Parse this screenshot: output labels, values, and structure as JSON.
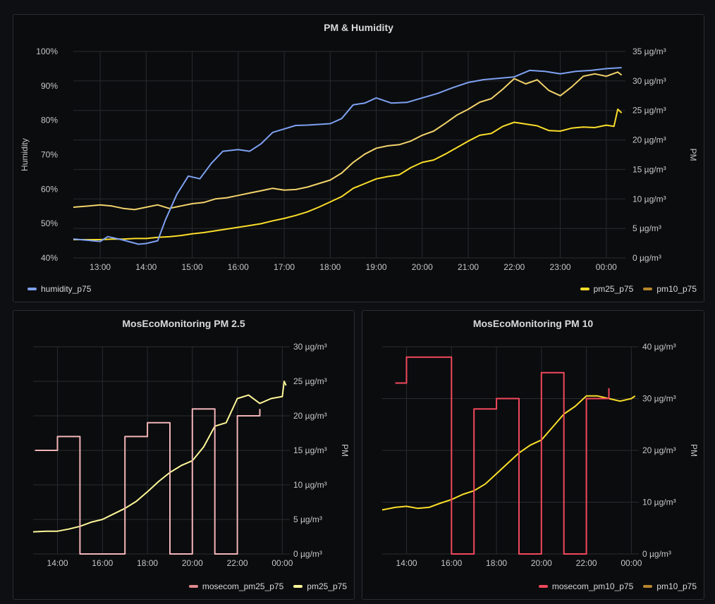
{
  "panels": [
    {
      "title": "PM & Humidity",
      "chart_data": {
        "type": "line",
        "x_ticks": [
          "13:00",
          "14:00",
          "15:00",
          "16:00",
          "17:00",
          "18:00",
          "19:00",
          "20:00",
          "21:00",
          "22:00",
          "23:00",
          "00:00"
        ],
        "xlim": [
          "12:25",
          "00:25"
        ],
        "left_axis": {
          "label": "Humidity",
          "ylim": [
            40,
            100
          ],
          "ticks": [
            "40%",
            "50%",
            "60%",
            "70%",
            "80%",
            "90%",
            "100%"
          ]
        },
        "right_axis": {
          "label": "PM",
          "ylim": [
            0,
            35
          ],
          "ticks": [
            "0 µg/m³",
            "5 µg/m³",
            "10 µg/m³",
            "15 µg/m³",
            "20 µg/m³",
            "25 µg/m³",
            "30 µg/m³",
            "35 µg/m³"
          ]
        },
        "grid": true,
        "series": [
          {
            "name": "humidity_p75",
            "axis": "left",
            "color": "#7ea1f2",
            "x": [
              "12:25",
              "13:00",
              "13:10",
              "13:30",
              "13:50",
              "14:00",
              "14:15",
              "14:25",
              "14:40",
              "14:55",
              "15:10",
              "15:25",
              "15:40",
              "16:00",
              "16:15",
              "16:30",
              "16:45",
              "17:00",
              "17:15",
              "17:30",
              "18:00",
              "18:15",
              "18:30",
              "18:45",
              "19:00",
              "19:20",
              "19:40",
              "20:00",
              "20:20",
              "20:40",
              "21:00",
              "21:20",
              "21:40",
              "22:00",
              "22:20",
              "22:40",
              "23:00",
              "23:20",
              "23:40",
              "00:00",
              "00:20"
            ],
            "values": [
              45.5,
              44.8,
              46.2,
              45.2,
              44.0,
              44.2,
              45.0,
              51.0,
              58.5,
              63.8,
              63.0,
              67.5,
              71.0,
              71.5,
              71.0,
              73.2,
              76.5,
              77.5,
              78.5,
              78.6,
              79.0,
              80.5,
              84.5,
              85.0,
              86.5,
              85.0,
              85.2,
              86.5,
              87.8,
              89.5,
              91.0,
              91.8,
              92.2,
              92.6,
              94.5,
              94.2,
              93.5,
              94.2,
              94.5,
              95.0,
              95.3
            ]
          },
          {
            "name": "pm25_p75",
            "axis": "right",
            "color": "#fade2a",
            "x": [
              "12:25",
              "12:40",
              "13:00",
              "13:15",
              "13:30",
              "13:45",
              "14:00",
              "14:15",
              "14:30",
              "14:45",
              "15:00",
              "15:15",
              "15:30",
              "15:45",
              "16:00",
              "16:15",
              "16:30",
              "16:45",
              "17:00",
              "17:15",
              "17:30",
              "17:45",
              "18:00",
              "18:15",
              "18:30",
              "18:45",
              "19:00",
              "19:15",
              "19:30",
              "19:45",
              "20:00",
              "20:15",
              "20:30",
              "20:45",
              "21:00",
              "21:15",
              "21:30",
              "21:45",
              "22:00",
              "22:15",
              "22:30",
              "22:45",
              "23:00",
              "23:15",
              "23:30",
              "23:45",
              "00:00",
              "00:10",
              "00:15",
              "00:20"
            ],
            "values": [
              3.1,
              3.1,
              3.1,
              3.2,
              3.2,
              3.3,
              3.3,
              3.5,
              3.6,
              3.8,
              4.1,
              4.3,
              4.6,
              4.9,
              5.2,
              5.5,
              5.8,
              6.3,
              6.7,
              7.2,
              7.8,
              8.6,
              9.5,
              10.4,
              11.8,
              12.6,
              13.4,
              13.8,
              14.1,
              15.3,
              16.2,
              16.6,
              17.6,
              18.7,
              19.8,
              20.8,
              21.1,
              22.3,
              23.0,
              22.7,
              22.4,
              21.6,
              21.5,
              22.0,
              22.2,
              22.1,
              22.5,
              22.3,
              25.2,
              24.6
            ]
          },
          {
            "name": "pm10_p75",
            "axis": "right",
            "color": "#f2d36b",
            "x": [
              "12:25",
              "12:45",
              "13:00",
              "13:15",
              "13:30",
              "13:45",
              "14:00",
              "14:15",
              "14:30",
              "14:45",
              "15:00",
              "15:15",
              "15:30",
              "15:45",
              "16:00",
              "16:15",
              "16:30",
              "16:45",
              "17:00",
              "17:15",
              "17:30",
              "17:45",
              "18:00",
              "18:15",
              "18:30",
              "18:45",
              "19:00",
              "19:15",
              "19:30",
              "19:45",
              "20:00",
              "20:15",
              "20:30",
              "20:45",
              "21:00",
              "21:15",
              "21:30",
              "21:45",
              "22:00",
              "22:15",
              "22:30",
              "22:45",
              "23:00",
              "23:15",
              "23:30",
              "23:45",
              "00:00",
              "00:15",
              "00:20"
            ],
            "values": [
              8.6,
              8.8,
              9.0,
              8.8,
              8.4,
              8.2,
              8.6,
              9.0,
              8.4,
              8.8,
              9.2,
              9.4,
              10.0,
              10.2,
              10.6,
              11.0,
              11.4,
              11.8,
              11.5,
              11.6,
              12.0,
              12.6,
              13.2,
              14.4,
              16.2,
              17.6,
              18.6,
              19.0,
              19.2,
              19.8,
              20.8,
              21.5,
              22.8,
              24.2,
              25.2,
              26.4,
              27.0,
              28.6,
              30.4,
              29.5,
              30.2,
              28.4,
              27.5,
              29.0,
              30.8,
              31.2,
              30.8,
              31.5,
              31.0
            ]
          }
        ]
      },
      "legend_left": [
        {
          "name": "humidity_p75",
          "color": "#7ea1f2"
        }
      ],
      "legend_right": [
        {
          "name": "pm25_p75",
          "color": "#fade2a"
        },
        {
          "name": "pm10_p75",
          "color": "#b7862c"
        }
      ]
    },
    {
      "title": "MosEcoMonitoring PM 2.5",
      "chart_data": {
        "type": "line",
        "x_ticks": [
          "14:00",
          "16:00",
          "18:00",
          "20:00",
          "22:00",
          "00:00"
        ],
        "xlim": [
          "12:55",
          "00:20"
        ],
        "right_axis": {
          "label": "PM",
          "ylim": [
            0,
            30
          ],
          "ticks": [
            "0 µg/m³",
            "5 µg/m³",
            "10 µg/m³",
            "15 µg/m³",
            "20 µg/m³",
            "25 µg/m³",
            "30 µg/m³"
          ]
        },
        "grid": true,
        "series": [
          {
            "name": "mosecom_pm25_p75",
            "axis": "right",
            "step": true,
            "color": "#f2b5b8",
            "x": [
              "13:00",
              "14:00",
              "15:00",
              "17:00",
              "18:00",
              "19:00",
              "20:00",
              "21:00",
              "22:00",
              "23:00"
            ],
            "values": [
              15,
              17,
              0,
              17,
              19,
              0,
              21,
              0,
              20,
              21
            ]
          },
          {
            "name": "pm25_p75",
            "axis": "right",
            "color": "#fff899",
            "x": [
              "12:55",
              "13:30",
              "14:00",
              "14:30",
              "15:00",
              "15:30",
              "16:00",
              "16:30",
              "17:00",
              "17:30",
              "18:00",
              "18:30",
              "19:00",
              "19:30",
              "20:00",
              "20:30",
              "21:00",
              "21:30",
              "22:00",
              "22:30",
              "23:00",
              "23:30",
              "00:00",
              "00:05",
              "00:10"
            ],
            "values": [
              3.2,
              3.3,
              3.3,
              3.6,
              4.0,
              4.6,
              5.0,
              5.8,
              6.6,
              7.6,
              9.0,
              10.5,
              11.8,
              12.8,
              13.5,
              15.5,
              18.5,
              19.0,
              22.5,
              23.0,
              21.8,
              22.5,
              22.8,
              25.0,
              24.4
            ]
          }
        ]
      },
      "legend_right": [
        {
          "name": "mosecom_pm25_p75",
          "color": "#e28a8e"
        },
        {
          "name": "pm25_p75",
          "color": "#fff899"
        }
      ]
    },
    {
      "title": "MosEcoMonitoring PM 10",
      "chart_data": {
        "type": "line",
        "x_ticks": [
          "14:00",
          "16:00",
          "18:00",
          "20:00",
          "22:00",
          "00:00"
        ],
        "xlim": [
          "12:55",
          "00:20"
        ],
        "right_axis": {
          "label": "PM",
          "ylim": [
            0,
            40
          ],
          "ticks": [
            "0 µg/m³",
            "10 µg/m³",
            "20 µg/m³",
            "30 µg/m³",
            "40 µg/m³"
          ]
        },
        "grid": true,
        "series": [
          {
            "name": "mosecom_pm10_p75",
            "axis": "right",
            "step": true,
            "color": "#f2495c",
            "x": [
              "13:30",
              "14:00",
              "15:00",
              "16:00",
              "17:00",
              "18:00",
              "19:00",
              "20:00",
              "21:00",
              "22:00",
              "23:00"
            ],
            "values": [
              33,
              38,
              38,
              0,
              28,
              30,
              0,
              35,
              0,
              30,
              32
            ]
          },
          {
            "name": "pm10_p75",
            "axis": "right",
            "color": "#fade2a",
            "x": [
              "12:55",
              "13:30",
              "14:00",
              "14:30",
              "15:00",
              "15:30",
              "16:00",
              "16:30",
              "17:00",
              "17:30",
              "18:00",
              "18:30",
              "19:00",
              "19:30",
              "20:00",
              "20:30",
              "21:00",
              "21:30",
              "22:00",
              "22:30",
              "23:00",
              "23:30",
              "00:00",
              "00:10"
            ],
            "values": [
              8.5,
              9.0,
              9.2,
              8.8,
              9.0,
              9.8,
              10.5,
              11.5,
              12.2,
              13.5,
              15.5,
              17.5,
              19.5,
              21.0,
              22.0,
              24.5,
              27.0,
              28.5,
              30.5,
              30.5,
              30.0,
              29.5,
              30.0,
              30.5
            ]
          }
        ]
      },
      "legend_right": [
        {
          "name": "mosecom_pm10_p75",
          "color": "#f2495c"
        },
        {
          "name": "pm10_p75",
          "color": "#b7862c"
        }
      ]
    }
  ]
}
